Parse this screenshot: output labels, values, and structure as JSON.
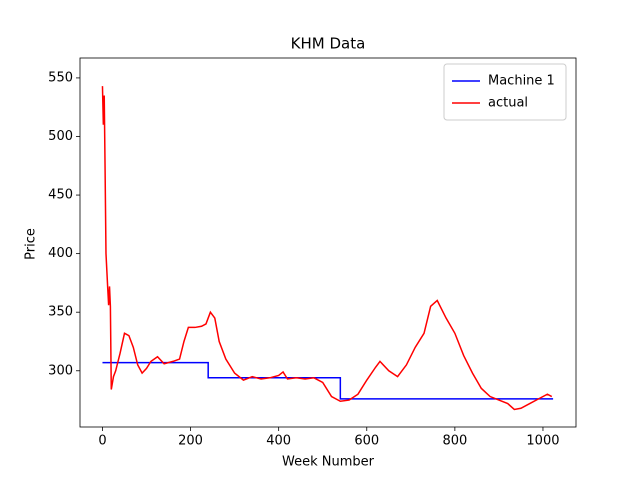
{
  "chart_data": {
    "type": "line",
    "title": "KHM Data",
    "x_label": "Week Number",
    "y_label": "Price",
    "xlim": [
      -51,
      1075
    ],
    "ylim": [
      252,
      567
    ],
    "xticks": [
      0,
      200,
      400,
      600,
      800,
      1000
    ],
    "yticks": [
      300,
      350,
      400,
      450,
      500,
      550
    ],
    "grid": false,
    "legend": "upper right",
    "series": [
      {
        "name": "Machine 1",
        "color": "#0000ff",
        "x": [
          0,
          240,
          240,
          540,
          540,
          1023
        ],
        "values": [
          307,
          307,
          294,
          294,
          276,
          276
        ]
      },
      {
        "name": "actual",
        "color": "#ff0000",
        "x": [
          0,
          2,
          4,
          6,
          8,
          10,
          12,
          14,
          16,
          18,
          20,
          25,
          30,
          40,
          50,
          60,
          70,
          80,
          90,
          100,
          110,
          125,
          140,
          160,
          175,
          185,
          195,
          210,
          225,
          235,
          245,
          255,
          265,
          280,
          300,
          320,
          340,
          360,
          380,
          400,
          410,
          420,
          440,
          460,
          480,
          500,
          520,
          540,
          560,
          580,
          600,
          620,
          630,
          650,
          670,
          690,
          710,
          730,
          745,
          760,
          780,
          800,
          820,
          840,
          860,
          880,
          900,
          920,
          935,
          950,
          970,
          990,
          1010,
          1020
        ],
        "values": [
          543,
          510,
          535,
          470,
          400,
          385,
          370,
          356,
          372,
          355,
          284,
          295,
          300,
          315,
          332,
          330,
          320,
          305,
          298,
          302,
          308,
          312,
          306,
          308,
          310,
          325,
          337,
          337,
          338,
          340,
          350,
          345,
          325,
          310,
          298,
          292,
          295,
          293,
          294,
          296,
          299,
          293,
          294,
          293,
          294,
          290,
          278,
          274,
          275,
          280,
          292,
          303,
          308,
          300,
          295,
          305,
          320,
          332,
          355,
          360,
          345,
          332,
          313,
          298,
          285,
          278,
          275,
          272,
          267,
          268,
          272,
          276,
          280,
          278
        ]
      }
    ]
  }
}
